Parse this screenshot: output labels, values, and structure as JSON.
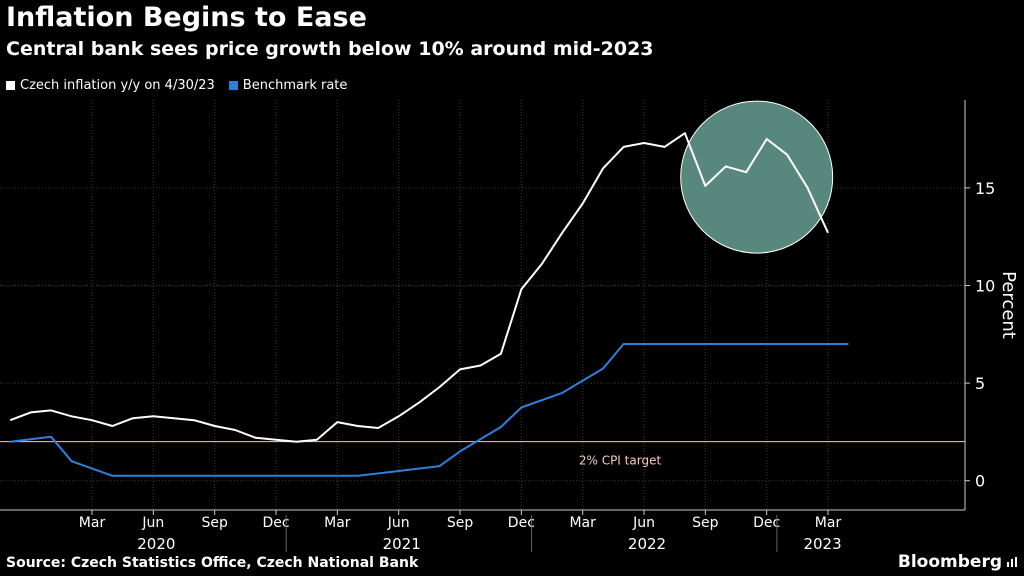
{
  "header": {
    "title": "Inflation Begins to Ease",
    "subtitle": "Central bank sees price growth below 10% around mid-2023"
  },
  "footer": {
    "source": "Source: Czech Statistics Office, Czech National Bank",
    "brand": "Bloomberg"
  },
  "colors": {
    "inflation": "#ffffff",
    "rate": "#2f7fdc",
    "target": "#f3c9c0",
    "grid": "#3a3a3a",
    "highlight": "#5d8f84"
  },
  "chart_data": {
    "type": "line",
    "title": "Inflation Begins to Ease",
    "ylabel": "Percent",
    "xlabel": "",
    "ylim": [
      -1.5,
      19.5
    ],
    "yticks": [
      0,
      5,
      10,
      15
    ],
    "legend_position": "top-left",
    "x_start": "2019-11",
    "x_tick_labels": [
      {
        "month": "2020-03",
        "label": "Mar"
      },
      {
        "month": "2020-06",
        "label": "Jun"
      },
      {
        "month": "2020-09",
        "label": "Sep"
      },
      {
        "month": "2020-12",
        "label": "Dec"
      },
      {
        "month": "2021-03",
        "label": "Mar"
      },
      {
        "month": "2021-06",
        "label": "Jun"
      },
      {
        "month": "2021-09",
        "label": "Sep"
      },
      {
        "month": "2021-12",
        "label": "Dec"
      },
      {
        "month": "2022-03",
        "label": "Mar"
      },
      {
        "month": "2022-06",
        "label": "Jun"
      },
      {
        "month": "2022-09",
        "label": "Sep"
      },
      {
        "month": "2022-12",
        "label": "Dec"
      },
      {
        "month": "2023-03",
        "label": "Mar"
      }
    ],
    "year_labels": [
      "2020",
      "2021",
      "2022",
      "2023"
    ],
    "series": [
      {
        "name": "Czech inflation y/y on 4/30/23",
        "values": [
          {
            "x": "2019-11",
            "y": 3.1
          },
          {
            "x": "2019-12",
            "y": 3.5
          },
          {
            "x": "2020-01",
            "y": 3.6
          },
          {
            "x": "2020-02",
            "y": 3.3
          },
          {
            "x": "2020-03",
            "y": 3.1
          },
          {
            "x": "2020-04",
            "y": 2.8
          },
          {
            "x": "2020-05",
            "y": 3.2
          },
          {
            "x": "2020-06",
            "y": 3.3
          },
          {
            "x": "2020-07",
            "y": 3.2
          },
          {
            "x": "2020-08",
            "y": 3.1
          },
          {
            "x": "2020-09",
            "y": 2.8
          },
          {
            "x": "2020-10",
            "y": 2.6
          },
          {
            "x": "2020-11",
            "y": 2.2
          },
          {
            "x": "2020-12",
            "y": 2.1
          },
          {
            "x": "2021-01",
            "y": 2.0
          },
          {
            "x": "2021-02",
            "y": 2.1
          },
          {
            "x": "2021-03",
            "y": 3.0
          },
          {
            "x": "2021-04",
            "y": 2.8
          },
          {
            "x": "2021-05",
            "y": 2.7
          },
          {
            "x": "2021-06",
            "y": 3.3
          },
          {
            "x": "2021-07",
            "y": 4.0
          },
          {
            "x": "2021-08",
            "y": 4.8
          },
          {
            "x": "2021-09",
            "y": 5.7
          },
          {
            "x": "2021-10",
            "y": 5.9
          },
          {
            "x": "2021-11",
            "y": 6.5
          },
          {
            "x": "2021-12",
            "y": 9.8
          },
          {
            "x": "2022-01",
            "y": 11.1
          },
          {
            "x": "2022-02",
            "y": 12.7
          },
          {
            "x": "2022-03",
            "y": 14.2
          },
          {
            "x": "2022-04",
            "y": 16.0
          },
          {
            "x": "2022-05",
            "y": 17.1
          },
          {
            "x": "2022-06",
            "y": 17.3
          },
          {
            "x": "2022-07",
            "y": 17.1
          },
          {
            "x": "2022-08",
            "y": 17.8
          },
          {
            "x": "2022-09",
            "y": 15.1
          },
          {
            "x": "2022-10",
            "y": 16.1
          },
          {
            "x": "2022-11",
            "y": 15.8
          },
          {
            "x": "2022-12",
            "y": 17.5
          },
          {
            "x": "2023-01",
            "y": 16.7
          },
          {
            "x": "2023-02",
            "y": 15.0
          },
          {
            "x": "2023-03",
            "y": 12.7
          }
        ]
      },
      {
        "name": "Benchmark rate",
        "values": [
          {
            "x": "2019-11",
            "y": 2.0
          },
          {
            "x": "2020-01",
            "y": 2.25
          },
          {
            "x": "2020-02",
            "y": 1.0
          },
          {
            "x": "2020-04",
            "y": 0.25
          },
          {
            "x": "2021-04",
            "y": 0.25
          },
          {
            "x": "2021-06",
            "y": 0.5
          },
          {
            "x": "2021-08",
            "y": 0.75
          },
          {
            "x": "2021-09",
            "y": 1.5
          },
          {
            "x": "2021-11",
            "y": 2.75
          },
          {
            "x": "2021-12",
            "y": 3.75
          },
          {
            "x": "2022-02",
            "y": 4.5
          },
          {
            "x": "2022-04",
            "y": 5.75
          },
          {
            "x": "2022-05",
            "y": 7.0
          },
          {
            "x": "2023-04",
            "y": 7.0
          }
        ]
      }
    ],
    "reference_line": {
      "y": 2,
      "label": "2% CPI target"
    },
    "highlight": {
      "center_month": "2022-12",
      "center_y": 15.5
    }
  }
}
